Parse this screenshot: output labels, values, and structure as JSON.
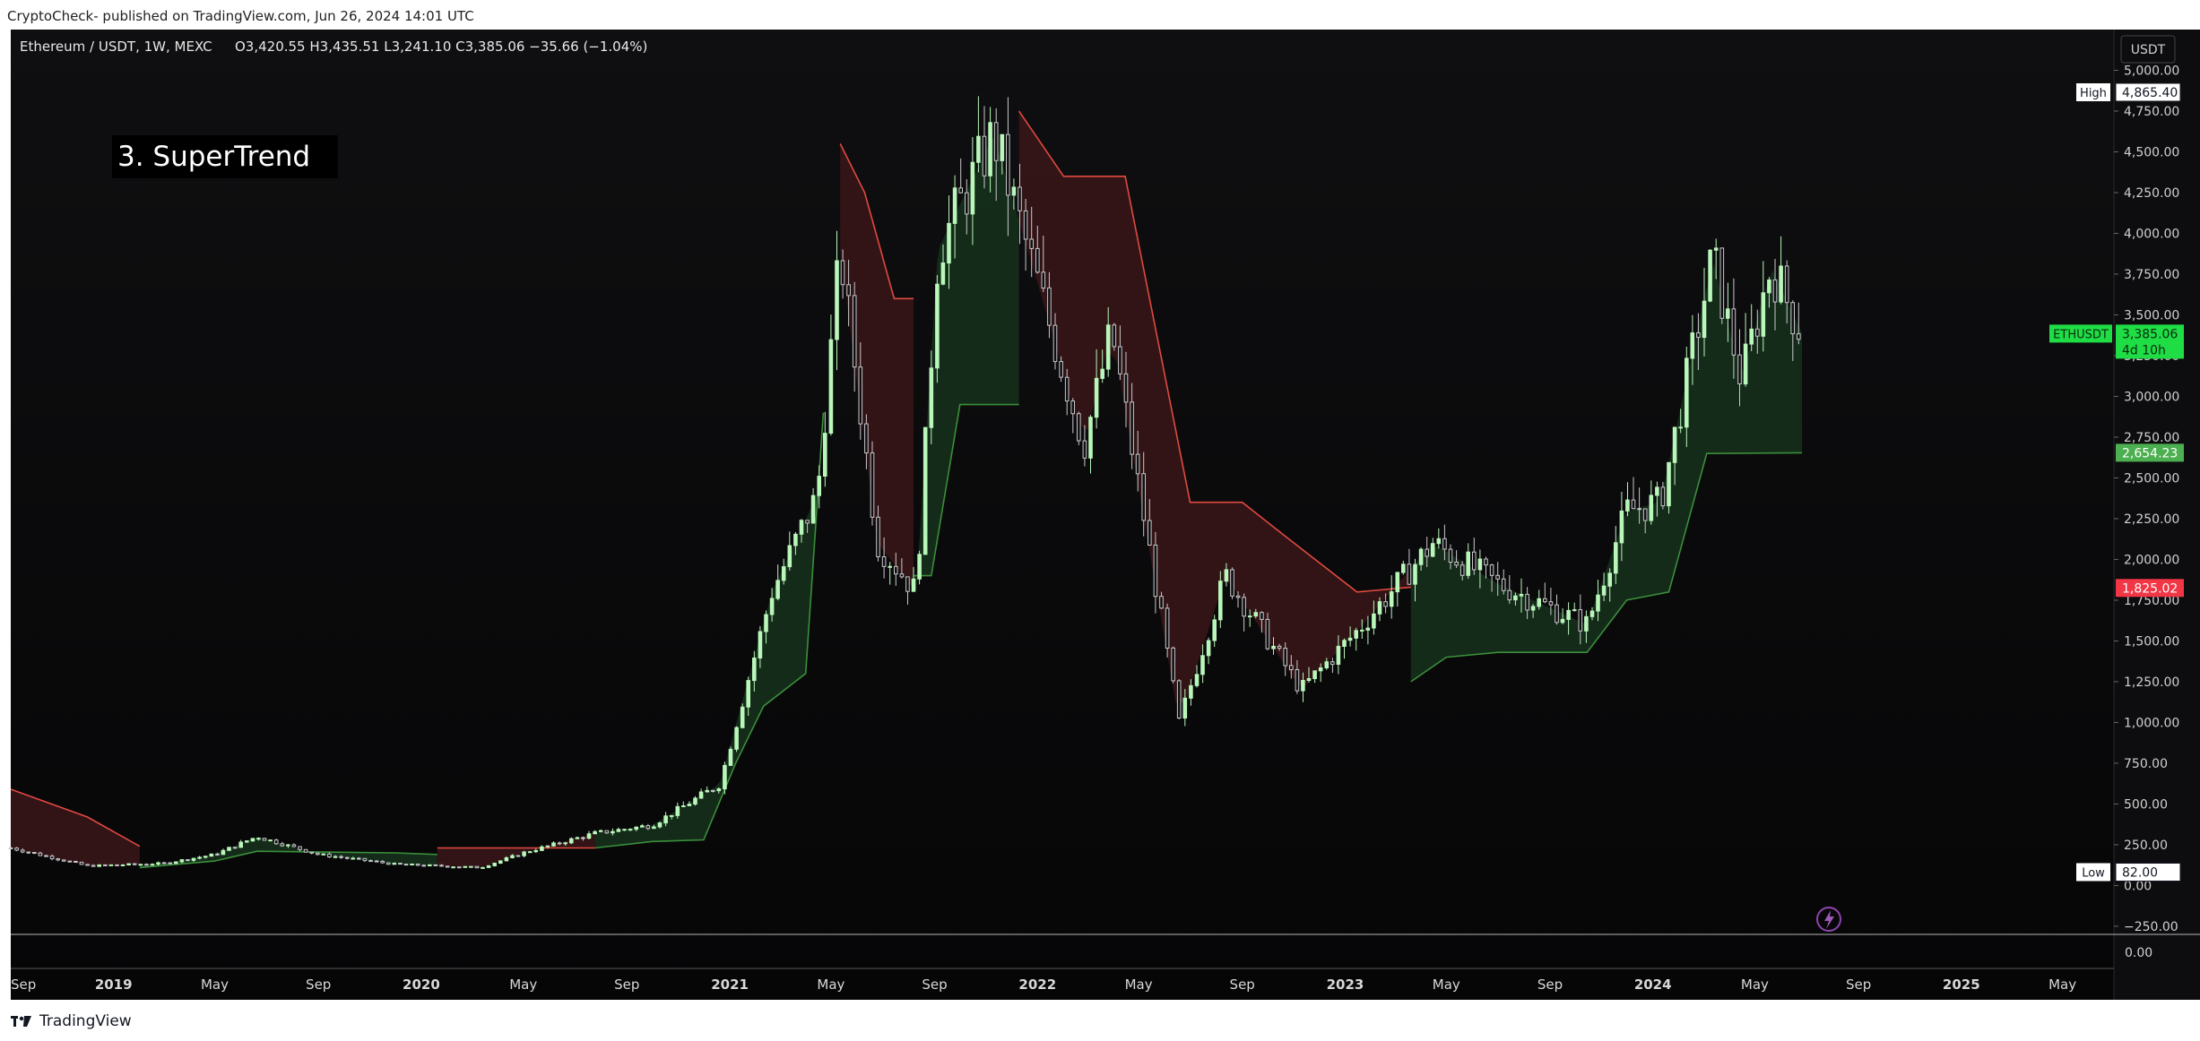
{
  "header": {
    "published_text": "CryptoCheck- published on TradingView.com, Jun 26, 2024 14:01 UTC"
  },
  "symbol": {
    "title": "Ethereum / USDT, 1W, MEXC",
    "ohlc": "O3,420.55 H3,435.51 L3,241.10 C3,385.06 −35.66 (−1.04%)"
  },
  "annotation_label": "3. SuperTrend",
  "currency_label": "USDT",
  "colors": {
    "background": "#0f0f11",
    "up_candle": "#b9f6b9",
    "down_candle": "#c8c8cc",
    "supertrend_up": "#3a8f3a",
    "supertrend_down": "#e2493f",
    "fill_up": "#16311c",
    "fill_down": "#3a1619",
    "last_price": "#1fdd45",
    "down_level": "#f23645"
  },
  "chart_data": {
    "type": "candlestick",
    "title": "",
    "series": [
      {
        "name": "ETHUSDT",
        "kind": "close_path",
        "x": [
          "2018-09-01",
          "2018-12-01",
          "2019-03-01",
          "2019-05-01",
          "2019-06-20",
          "2019-09-01",
          "2019-12-01",
          "2020-03-12",
          "2020-05-01",
          "2020-07-25",
          "2020-10-01",
          "2020-12-20",
          "2021-02-20",
          "2021-04-15",
          "2021-05-12",
          "2021-06-25",
          "2021-08-10",
          "2021-09-05",
          "2021-11-10",
          "2022-01-01",
          "2022-02-25",
          "2022-03-30",
          "2022-06-18",
          "2022-08-12",
          "2022-11-10",
          "2023-01-15",
          "2023-04-15",
          "2023-07-01",
          "2023-10-15",
          "2023-12-01",
          "2024-01-10",
          "2024-03-12",
          "2024-04-15",
          "2024-05-20",
          "2024-06-26"
        ],
        "values": [
          230,
          120,
          135,
          190,
          300,
          190,
          130,
          110,
          200,
          320,
          370,
          620,
          1800,
          2400,
          3900,
          2100,
          1800,
          3900,
          4600,
          3700,
          2700,
          3400,
          1000,
          1900,
          1200,
          1560,
          2100,
          1850,
          1600,
          2300,
          2350,
          3850,
          3100,
          3800,
          3385.06
        ]
      },
      {
        "name": "SuperTrend up",
        "kind": "supertrend_up",
        "segments": [
          {
            "x": [
              "2019-02-01",
              "2019-05-01",
              "2019-06-20",
              "2019-12-01",
              "2020-01-20"
            ],
            "values": [
              110,
              150,
              210,
              200,
              190
            ]
          },
          {
            "x": [
              "2020-07-25",
              "2020-10-01",
              "2020-12-01",
              "2021-01-08",
              "2021-02-10",
              "2021-04-01",
              "2021-04-22"
            ],
            "values": [
              230,
              270,
              280,
              750,
              1100,
              1300,
              2900
            ]
          },
          {
            "x": [
              "2021-08-07",
              "2021-08-28",
              "2021-10-01",
              "2021-12-10"
            ],
            "values": [
              1900,
              1900,
              2950,
              2950
            ]
          },
          {
            "x": [
              "2023-03-20",
              "2023-05-01",
              "2023-07-01",
              "2023-09-01",
              "2023-10-15",
              "2023-12-01",
              "2024-01-20",
              "2024-03-05",
              "2024-06-26"
            ],
            "values": [
              1250,
              1400,
              1430,
              1430,
              1430,
              1750,
              1800,
              2650,
              2654.23
            ]
          }
        ]
      },
      {
        "name": "SuperTrend down",
        "kind": "supertrend_down",
        "segments": [
          {
            "x": [
              "2018-09-01",
              "2018-12-01",
              "2019-02-01"
            ],
            "values": [
              590,
              420,
              240
            ]
          },
          {
            "x": [
              "2020-01-20",
              "2020-03-10",
              "2020-07-25"
            ],
            "values": [
              230,
              230,
              230
            ]
          },
          {
            "x": [
              "2021-05-12",
              "2021-06-10",
              "2021-07-15",
              "2021-08-07"
            ],
            "values": [
              4550,
              4250,
              3600,
              3600
            ]
          },
          {
            "x": [
              "2021-12-10",
              "2022-02-01",
              "2022-03-01",
              "2022-04-15",
              "2022-07-01",
              "2022-09-01",
              "2022-10-20",
              "2023-01-15",
              "2023-03-20"
            ],
            "values": [
              4750,
              4350,
              4350,
              4350,
              2350,
              2350,
              2150,
              1800,
              1830
            ]
          }
        ]
      }
    ],
    "xlim": [
      "2018-09-01",
      "2025-07-01"
    ],
    "ylim": [
      -300,
      5250
    ],
    "x_ticks": [
      {
        "label": "Sep",
        "date": "2018-09-01",
        "bold": false
      },
      {
        "label": "2019",
        "date": "2019-01-01",
        "bold": true
      },
      {
        "label": "May",
        "date": "2019-05-01",
        "bold": false
      },
      {
        "label": "Sep",
        "date": "2019-09-01",
        "bold": false
      },
      {
        "label": "2020",
        "date": "2020-01-01",
        "bold": true
      },
      {
        "label": "May",
        "date": "2020-05-01",
        "bold": false
      },
      {
        "label": "Sep",
        "date": "2020-09-01",
        "bold": false
      },
      {
        "label": "2021",
        "date": "2021-01-01",
        "bold": true
      },
      {
        "label": "May",
        "date": "2021-05-01",
        "bold": false
      },
      {
        "label": "Sep",
        "date": "2021-09-01",
        "bold": false
      },
      {
        "label": "2022",
        "date": "2022-01-01",
        "bold": true
      },
      {
        "label": "May",
        "date": "2022-05-01",
        "bold": false
      },
      {
        "label": "Sep",
        "date": "2022-09-01",
        "bold": false
      },
      {
        "label": "2023",
        "date": "2023-01-01",
        "bold": true
      },
      {
        "label": "May",
        "date": "2023-05-01",
        "bold": false
      },
      {
        "label": "Sep",
        "date": "2023-09-01",
        "bold": false
      },
      {
        "label": "2024",
        "date": "2024-01-01",
        "bold": true
      },
      {
        "label": "May",
        "date": "2024-05-01",
        "bold": false
      },
      {
        "label": "Sep",
        "date": "2024-09-01",
        "bold": false
      },
      {
        "label": "2025",
        "date": "2025-01-01",
        "bold": true
      },
      {
        "label": "May",
        "date": "2025-05-01",
        "bold": false
      }
    ],
    "y_ticks": [
      {
        "value": 5000,
        "label": "5,000.00"
      },
      {
        "value": 4750,
        "label": "4,750.00"
      },
      {
        "value": 4500,
        "label": "4,500.00"
      },
      {
        "value": 4250,
        "label": "4,250.00"
      },
      {
        "value": 4000,
        "label": "4,000.00"
      },
      {
        "value": 3750,
        "label": "3,750.00"
      },
      {
        "value": 3500,
        "label": "3,500.00"
      },
      {
        "value": 3250,
        "label": "3,250.00"
      },
      {
        "value": 3000,
        "label": "3,000.00"
      },
      {
        "value": 2750,
        "label": "2,750.00"
      },
      {
        "value": 2500,
        "label": "2,500.00"
      },
      {
        "value": 2250,
        "label": "2,250.00"
      },
      {
        "value": 2000,
        "label": "2,000.00"
      },
      {
        "value": 1750,
        "label": "1,750.00"
      },
      {
        "value": 1500,
        "label": "1,500.00"
      },
      {
        "value": 1250,
        "label": "1,250.00"
      },
      {
        "value": 1000,
        "label": "1,000.00"
      },
      {
        "value": 750,
        "label": "750.00"
      },
      {
        "value": 500,
        "label": "500.00"
      },
      {
        "value": 250,
        "label": "250.00"
      },
      {
        "value": 0,
        "label": "0.00"
      },
      {
        "value": -250,
        "label": "−250.00"
      }
    ],
    "price_labels": [
      {
        "name": "high",
        "tag": "High",
        "value": 4865.4,
        "text": "4,865.40"
      },
      {
        "name": "low",
        "tag": "Low",
        "value": 82.0,
        "text": "82.00"
      },
      {
        "name": "last",
        "tag": "ETHUSDT",
        "value": 3385.06,
        "text": "3,385.06",
        "sub": "4d 10h"
      },
      {
        "name": "supertrend-up",
        "value": 2654.23,
        "text": "2,654.23"
      },
      {
        "name": "supertrend-down",
        "value": 1825.02,
        "text": "1,825.02"
      }
    ],
    "lower_pane": {
      "label": "0.00"
    },
    "grid": false,
    "legend": "top-left"
  },
  "footer": {
    "brand": "TradingView"
  }
}
